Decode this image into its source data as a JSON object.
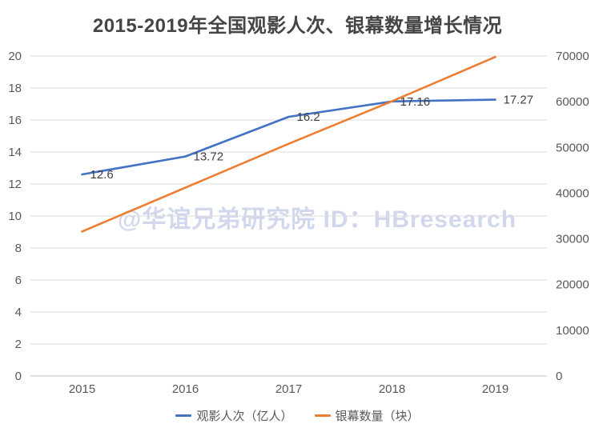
{
  "title": "2015-2019年全国观影人次、银幕数量增长情况",
  "watermark": "@华谊兄弟研究院 ID：HBresearch",
  "chart_data": {
    "type": "line",
    "title": "2015-2019年全国观影人次、银幕数量增长情况",
    "categories": [
      "2015",
      "2016",
      "2017",
      "2018",
      "2019"
    ],
    "series": [
      {
        "name": "观影人次（亿人）",
        "axis": "left",
        "color": "#4472c4",
        "values": [
          12.6,
          13.72,
          16.2,
          17.16,
          17.27
        ],
        "labels": [
          "12.6",
          "13.72",
          "16.2",
          "17.16",
          "17.27"
        ],
        "show_labels": true
      },
      {
        "name": "银幕数量（块）",
        "axis": "right",
        "color": "#ed7d31",
        "values": [
          31600,
          41200,
          50800,
          60100,
          69800
        ],
        "show_labels": false
      }
    ],
    "left_axis": {
      "min": 0,
      "max": 20,
      "step": 2,
      "tick_labels": [
        "0",
        "2",
        "4",
        "6",
        "8",
        "10",
        "12",
        "14",
        "16",
        "18",
        "20"
      ]
    },
    "right_axis": {
      "min": 0,
      "max": 70000,
      "step": 10000,
      "tick_labels": [
        "0",
        "10000",
        "20000",
        "30000",
        "40000",
        "50000",
        "60000",
        "70000"
      ]
    },
    "grid": true,
    "legend_position": "bottom",
    "xlabel": "",
    "ylabel": ""
  },
  "legend": {
    "items": [
      {
        "label": "观影人次（亿人）",
        "color": "#4472c4"
      },
      {
        "label": "银幕数量（块）",
        "color": "#ed7d31"
      }
    ]
  },
  "colors": {
    "attendance_line": "#4472c4",
    "screens_line": "#ed7d31",
    "gridline": "#dcdcdc",
    "axis_line": "#c3c3c3",
    "axis_text": "#595959",
    "title_text": "#454545",
    "watermark_text": "#c9cee9"
  }
}
